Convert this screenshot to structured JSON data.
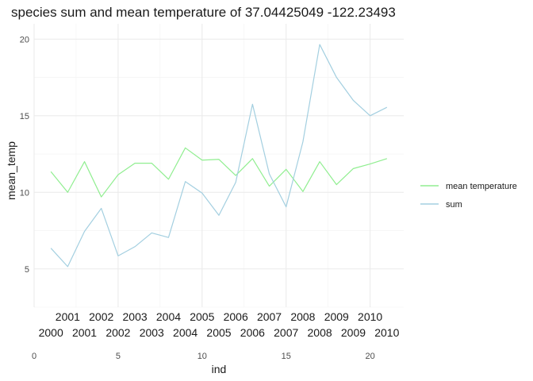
{
  "chart_data": {
    "type": "line",
    "title": "species sum and mean temperature of 37.04425049 -122.23493",
    "xlabel": "ind",
    "ylabel": "mean_temp",
    "xlim": [
      0,
      22
    ],
    "ylim": [
      2.5,
      21
    ],
    "x_ticks": [
      0,
      5,
      10,
      15,
      20
    ],
    "y_ticks": [
      5,
      10,
      15,
      20
    ],
    "grid": true,
    "legend_position": "right",
    "x": [
      1,
      2,
      3,
      4,
      5,
      6,
      7,
      8,
      9,
      10,
      11,
      12,
      13,
      14,
      15,
      16,
      17,
      18,
      19,
      20,
      21
    ],
    "series": [
      {
        "name": "mean temperature",
        "color": "#90ee90",
        "values": [
          11.35,
          10.0,
          12.0,
          9.7,
          11.15,
          11.9,
          11.9,
          10.85,
          12.9,
          12.1,
          12.15,
          11.1,
          12.2,
          10.4,
          11.5,
          10.05,
          12.0,
          10.5,
          11.55,
          11.85,
          12.2
        ]
      },
      {
        "name": "sum",
        "color": "#a3cfe0",
        "values": [
          6.35,
          5.15,
          7.45,
          8.95,
          5.85,
          6.45,
          7.35,
          7.05,
          10.7,
          9.95,
          8.5,
          10.65,
          15.75,
          11.2,
          9.05,
          13.3,
          19.65,
          17.5,
          16.0,
          15.0,
          15.55
        ]
      }
    ],
    "annotations": {
      "row_upper": [
        {
          "x": 2,
          "label": "2001"
        },
        {
          "x": 4,
          "label": "2002"
        },
        {
          "x": 6,
          "label": "2003"
        },
        {
          "x": 8,
          "label": "2004"
        },
        {
          "x": 10,
          "label": "2005"
        },
        {
          "x": 12,
          "label": "2006"
        },
        {
          "x": 14,
          "label": "2007"
        },
        {
          "x": 16,
          "label": "2008"
        },
        {
          "x": 18,
          "label": "2009"
        },
        {
          "x": 20,
          "label": "2010"
        }
      ],
      "row_lower": [
        {
          "x": 1,
          "label": "2000"
        },
        {
          "x": 3,
          "label": "2001"
        },
        {
          "x": 5,
          "label": "2002"
        },
        {
          "x": 7,
          "label": "2003"
        },
        {
          "x": 9,
          "label": "2004"
        },
        {
          "x": 11,
          "label": "2005"
        },
        {
          "x": 13,
          "label": "2006"
        },
        {
          "x": 15,
          "label": "2007"
        },
        {
          "x": 17,
          "label": "2008"
        },
        {
          "x": 19,
          "label": "2009"
        },
        {
          "x": 21,
          "label": "2010"
        }
      ]
    }
  }
}
